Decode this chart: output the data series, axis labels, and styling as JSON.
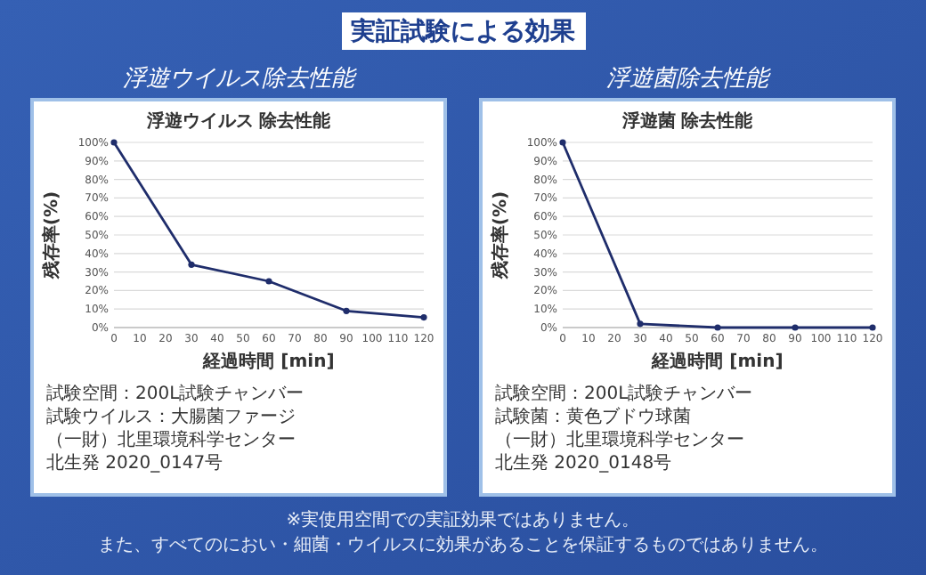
{
  "chart_data": [
    {
      "type": "line",
      "subtitle": "浮遊ウイルス除去性能",
      "title": "浮遊ウイルス 除去性能",
      "xlabel": "経過時間 [min]",
      "ylabel": "残存率(%)",
      "annotations": [
        "試験空間：200L試験チャンバー",
        "試験ウイルス：大腸菌ファージ",
        "（一財）北里環境科学センター",
        "北生発 2020_0147号"
      ],
      "x": [
        0,
        30,
        60,
        90,
        120
      ],
      "values": [
        100,
        34,
        25,
        9,
        5.5
      ],
      "color": "#1f2d6b",
      "marker": "circle",
      "grid": "y",
      "xlim": [
        0,
        120
      ],
      "xticks": [
        0,
        10,
        20,
        30,
        40,
        50,
        60,
        70,
        80,
        90,
        100,
        110,
        120
      ],
      "ylim": [
        0,
        100
      ],
      "yticks": [
        {
          "value": 0,
          "label": "0%"
        },
        {
          "value": 10,
          "label": "10%"
        },
        {
          "value": 20,
          "label": "20%"
        },
        {
          "value": 30,
          "label": "30%"
        },
        {
          "value": 40,
          "label": "40%"
        },
        {
          "value": 50,
          "label": "50%"
        },
        {
          "value": 60,
          "label": "60%"
        },
        {
          "value": 70,
          "label": "70%"
        },
        {
          "value": 80,
          "label": "80%"
        },
        {
          "value": 90,
          "label": "90%"
        },
        {
          "value": 100,
          "label": "100%"
        }
      ]
    },
    {
      "type": "line",
      "subtitle": "浮遊菌除去性能",
      "title": "浮遊菌 除去性能",
      "xlabel": "経過時間 [min]",
      "ylabel": "残存率(%)",
      "annotations": [
        "試験空間：200L試験チャンバー",
        "試験菌：黄色ブドウ球菌",
        "（一財）北里環境科学センター",
        "北生発 2020_0148号"
      ],
      "x": [
        0,
        30,
        60,
        90,
        120
      ],
      "values": [
        100,
        2,
        0,
        0,
        0
      ],
      "color": "#1f2d6b",
      "marker": "circle",
      "grid": "y",
      "xlim": [
        0,
        120
      ],
      "xticks": [
        0,
        10,
        20,
        30,
        40,
        50,
        60,
        70,
        80,
        90,
        100,
        110,
        120
      ],
      "ylim": [
        0,
        100
      ],
      "yticks": [
        {
          "value": 0,
          "label": "0%"
        },
        {
          "value": 10,
          "label": "10%"
        },
        {
          "value": 20,
          "label": "20%"
        },
        {
          "value": 30,
          "label": "30%"
        },
        {
          "value": 40,
          "label": "40%"
        },
        {
          "value": 50,
          "label": "50%"
        },
        {
          "value": 60,
          "label": "60%"
        },
        {
          "value": 70,
          "label": "70%"
        },
        {
          "value": 80,
          "label": "80%"
        },
        {
          "value": 90,
          "label": "90%"
        },
        {
          "value": 100,
          "label": "100%"
        }
      ]
    },
    {
      "type": "other",
      "title": "実証試験による効果",
      "annotations": [
        "※実使用空間での実証効果ではありません。",
        "また、すべてのにおい・細菌・ウイルスに効果があることを保証するものではありません。"
      ]
    }
  ]
}
